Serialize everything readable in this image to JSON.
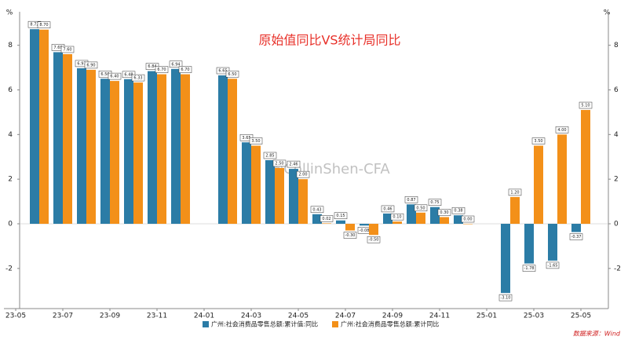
{
  "chart_data": {
    "type": "bar",
    "title": "原始值同比VS统计局同比",
    "y_label": "%",
    "source": "数据来源：Wind",
    "watermark": "@CollinShen-CFA",
    "categories": [
      "23-05",
      null,
      "23-07",
      null,
      "23-09",
      null,
      "23-11",
      null,
      "24-01",
      null,
      "24-03",
      null,
      "24-05",
      null,
      "24-07",
      null,
      "24-09",
      null,
      "24-11",
      null,
      "25-01",
      null,
      "25-03",
      null,
      "25-05"
    ],
    "series": [
      {
        "name": "广州:社会消费品零售总额:累计值:同比",
        "color": "#2b7ca6",
        "values": [
          null,
          8.72,
          7.69,
          6.97,
          6.5,
          6.48,
          6.84,
          6.94,
          null,
          6.65,
          3.65,
          2.85,
          2.46,
          0.43,
          0.15,
          -0.08,
          0.46,
          0.87,
          0.75,
          0.38,
          null,
          -3.1,
          -1.78,
          -1.65,
          -0.37
        ],
        "value_labels": [
          null,
          "8.72",
          "7.69",
          "6.97",
          "6.50",
          "6.48",
          "6.84",
          "6.94",
          null,
          "6.65",
          "3.65",
          "2.85",
          "2.46",
          "0.43",
          "0.15",
          "-0.08",
          "0.46",
          "0.87",
          "0.75",
          "0.38",
          null,
          "-3.10",
          "-1.78",
          "-1.65",
          "-0.37"
        ]
      },
      {
        "name": "广州:社会消费品零售总额:累计同比",
        "color": "#f39019",
        "values": [
          null,
          8.7,
          7.6,
          6.9,
          6.4,
          6.33,
          6.7,
          6.7,
          null,
          6.5,
          3.5,
          2.5,
          2.0,
          0.02,
          -0.3,
          -0.5,
          0.1,
          0.5,
          0.3,
          0.0,
          null,
          1.2,
          3.5,
          4.0,
          5.1
        ],
        "value_labels": [
          null,
          "8.70",
          "7.60",
          "6.90",
          "6.40",
          "6.33",
          "6.70",
          "6.70",
          null,
          "6.50",
          "3.50",
          "2.50",
          "2.00",
          "0.02",
          "-0.30",
          "-0.50",
          "0.10",
          "0.50",
          "0.30",
          "0.00",
          null,
          "1.20",
          "3.50",
          "4.00",
          "5.10"
        ]
      }
    ],
    "ylim": [
      -3.8,
      9.5
    ],
    "yticks": [
      -2,
      0,
      2,
      4,
      6,
      8
    ]
  }
}
